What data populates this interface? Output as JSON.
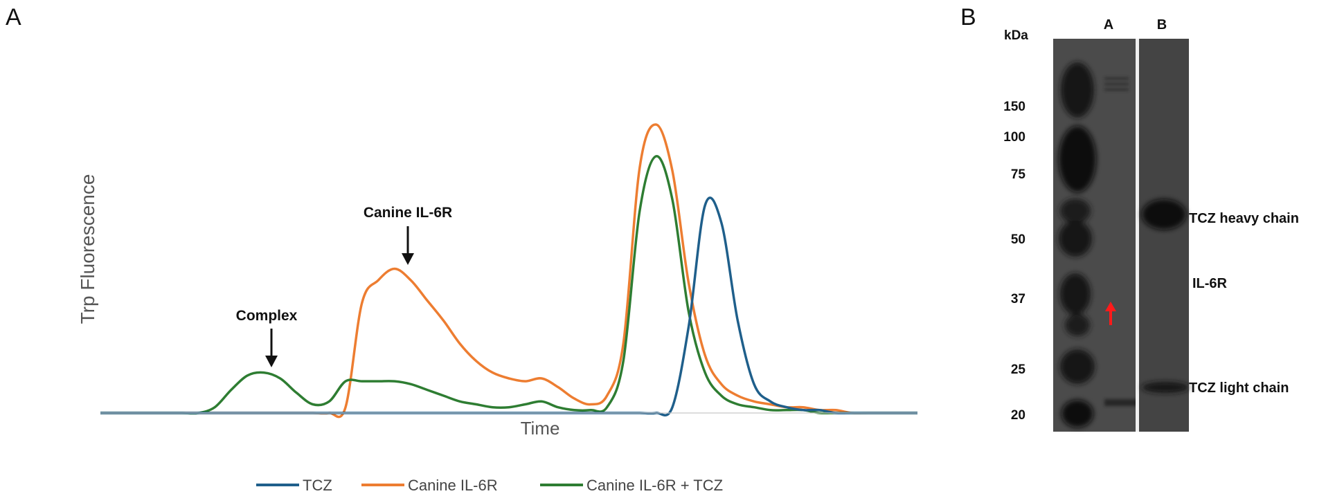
{
  "panel_a": {
    "letter": "A",
    "y_axis_label": "Trp Fluorescence",
    "x_axis_label": "Time",
    "annotations": [
      {
        "text": "Complex",
        "points_to": "Canine IL-6R + TCZ peak"
      },
      {
        "text": "Canine IL-6R",
        "points_to": "Canine IL-6R peak"
      }
    ],
    "legend": [
      {
        "label": "TCZ",
        "color": "#1f5f8b"
      },
      {
        "label": "Canine IL-6R",
        "color": "#ed7d31"
      },
      {
        "label": "Canine IL-6R + TCZ",
        "color": "#2e7d32"
      }
    ]
  },
  "chart_data": {
    "type": "line",
    "title": "",
    "xlabel": "Time",
    "ylabel": "Trp Fluorescence",
    "xlim": [
      0,
      100
    ],
    "ylim": [
      0,
      100
    ],
    "x": [
      0,
      4,
      8,
      10,
      12,
      14,
      16,
      18,
      20,
      22,
      24,
      26,
      28,
      30,
      32,
      34,
      36,
      38,
      40,
      42,
      44,
      46,
      48,
      50,
      52,
      54,
      56,
      58,
      60,
      62,
      64,
      66,
      68,
      70,
      72,
      74,
      76,
      78,
      80,
      82,
      84,
      86,
      88,
      90,
      92,
      94,
      96,
      98,
      100
    ],
    "series": [
      {
        "name": "TCZ",
        "color": "#1f5f8b",
        "values": [
          0,
          0,
          0,
          0,
          0,
          0,
          0,
          0,
          0,
          0,
          0,
          0,
          0,
          0,
          0,
          0,
          0,
          0,
          0,
          0,
          0,
          0,
          0,
          0,
          0,
          0,
          0,
          0,
          0,
          0,
          0,
          0,
          0,
          2,
          30,
          72,
          66,
          32,
          10,
          4,
          2,
          1,
          1,
          0,
          0,
          0,
          0,
          0,
          0
        ]
      },
      {
        "name": "Canine IL-6R",
        "color": "#ed7d31",
        "values": [
          0,
          0,
          0,
          0,
          0,
          0,
          0,
          0,
          0,
          0,
          0,
          0,
          0,
          2,
          38,
          46,
          50,
          46,
          39,
          32,
          24,
          18,
          14,
          12,
          11,
          12,
          9,
          5,
          3,
          6,
          24,
          85,
          100,
          84,
          45,
          20,
          10,
          6,
          4,
          3,
          2,
          2,
          1,
          1,
          0,
          0,
          0,
          0,
          0
        ]
      },
      {
        "name": "Canine IL-6R + TCZ",
        "color": "#2e7d32",
        "values": [
          0,
          0,
          0,
          0,
          0,
          2,
          8,
          13,
          14,
          12,
          7,
          3,
          4,
          11,
          11,
          11,
          11,
          10,
          8,
          6,
          4,
          3,
          2,
          2,
          3,
          4,
          2,
          1,
          1,
          2,
          18,
          70,
          89,
          74,
          35,
          14,
          6,
          3,
          2,
          1,
          1,
          1,
          0,
          0,
          0,
          0,
          0,
          0,
          0
        ]
      }
    ]
  },
  "panel_b": {
    "letter": "B",
    "unit": "kDa",
    "lane_labels": [
      "A",
      "B"
    ],
    "markers": [
      {
        "label": "150",
        "kda": 150
      },
      {
        "label": "100",
        "kda": 100
      },
      {
        "label": "75",
        "kda": 75
      },
      {
        "label": "50",
        "kda": 50
      },
      {
        "label": "37",
        "kda": 37
      },
      {
        "label": "25",
        "kda": 25
      },
      {
        "label": "20",
        "kda": 20
      }
    ],
    "band_labels": [
      "TCZ heavy chain",
      "IL-6R",
      "TCZ light chain"
    ]
  }
}
